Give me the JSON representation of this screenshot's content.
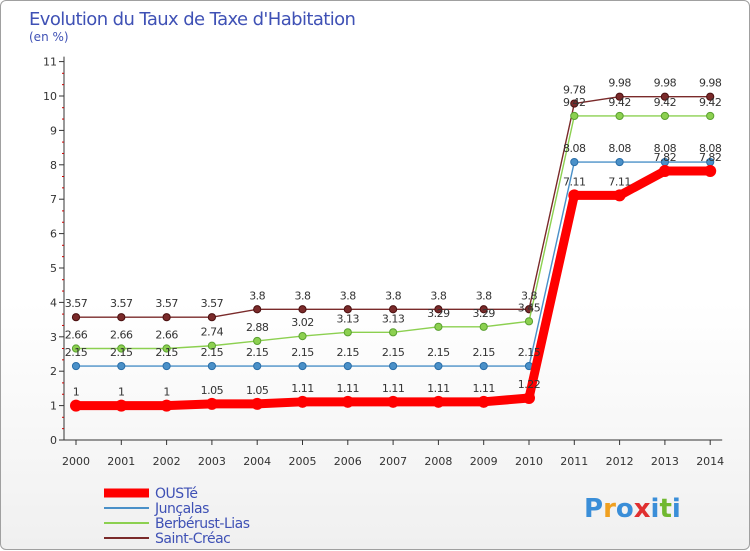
{
  "chart_data": {
    "type": "line",
    "title": "Evolution du Taux de Taxe d'Habitation",
    "subtitle": "(en %)",
    "x": [
      "2000",
      "2001",
      "2002",
      "2003",
      "2004",
      "2005",
      "2006",
      "2007",
      "2008",
      "2009",
      "2010",
      "2011",
      "2012",
      "2013",
      "2014"
    ],
    "ylim": [
      0,
      11
    ],
    "yticks": [
      "0",
      "1",
      "2",
      "3",
      "4",
      "5",
      "6",
      "7",
      "8",
      "9",
      "10",
      "11"
    ],
    "series": [
      {
        "name": "OUSTé",
        "color": "#ff0000",
        "values": [
          1,
          1,
          1,
          1.05,
          1.05,
          1.11,
          1.11,
          1.11,
          1.11,
          1.11,
          1.22,
          7.11,
          7.11,
          7.82,
          7.82
        ],
        "labels": [
          "1",
          "1",
          "1",
          "1.05",
          "1.05",
          "1.11",
          "1.11",
          "1.11",
          "1.11",
          "1.11",
          "1.22",
          "7.11",
          "7.11",
          "7.82",
          "7.82"
        ]
      },
      {
        "name": "Junçalas",
        "color": "#4a90c8",
        "values": [
          2.15,
          2.15,
          2.15,
          2.15,
          2.15,
          2.15,
          2.15,
          2.15,
          2.15,
          2.15,
          2.15,
          8.08,
          8.08,
          8.08,
          8.08
        ],
        "labels": [
          "2.15",
          "2.15",
          "2.15",
          "2.15",
          "2.15",
          "2.15",
          "2.15",
          "2.15",
          "2.15",
          "2.15",
          "2.15",
          "8.08",
          "8.08",
          "8.08",
          "8.08"
        ]
      },
      {
        "name": "Berbérust-Lias",
        "color": "#8cd050",
        "values": [
          2.66,
          2.66,
          2.66,
          2.74,
          2.88,
          3.02,
          3.13,
          3.13,
          3.29,
          3.29,
          3.45,
          9.42,
          9.42,
          9.42,
          9.42
        ],
        "labels": [
          "2.66",
          "2.66",
          "2.66",
          "2.74",
          "2.88",
          "3.02",
          "3.13",
          "3.13",
          "3.29",
          "3.29",
          "3.45",
          "9.42",
          "9.42",
          "9.42",
          "9.42"
        ]
      },
      {
        "name": "Saint-Créac",
        "color": "#7a2a2a",
        "values": [
          3.57,
          3.57,
          3.57,
          3.57,
          3.8,
          3.8,
          3.8,
          3.8,
          3.8,
          3.8,
          3.8,
          9.78,
          9.98,
          9.98,
          9.98
        ],
        "labels": [
          "3.57",
          "3.57",
          "3.57",
          "3.57",
          "3.8",
          "3.8",
          "3.8",
          "3.8",
          "3.8",
          "3.8",
          "3.8",
          "9.78",
          "9.98",
          "9.98",
          "9.98"
        ]
      }
    ],
    "legend_position": "bottom-left",
    "grid": false
  },
  "branding": {
    "logo_text": "Proxiti",
    "logo_colors": [
      "#3a8ed8",
      "#f0a020",
      "#3a8ed8",
      "#e03030",
      "#3a8ed8",
      "#70b830",
      "#3a8ed8"
    ]
  }
}
